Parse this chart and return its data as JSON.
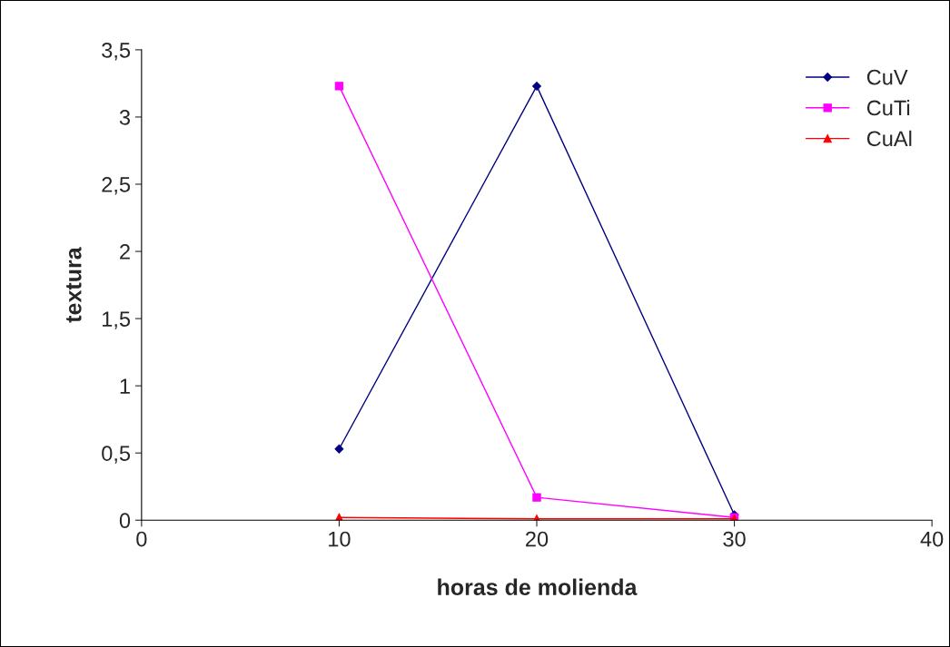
{
  "chart_data": {
    "type": "line",
    "xlabel": "horas de molienda",
    "ylabel": "textura",
    "x": [
      10,
      20,
      30
    ],
    "series": [
      {
        "name": "CuV",
        "color": "#000080",
        "marker": "diamond",
        "values": [
          0.53,
          3.23,
          0.04
        ]
      },
      {
        "name": "CuTi",
        "color": "#ff00ff",
        "marker": "square",
        "values": [
          3.23,
          0.17,
          0.02
        ]
      },
      {
        "name": "CuAl",
        "color": "#ff0000",
        "marker": "triangle",
        "values": [
          0.02,
          0.01,
          0.01
        ]
      }
    ],
    "xlim": [
      0,
      40
    ],
    "xticks": [
      0,
      10,
      20,
      30,
      40
    ],
    "ylim": [
      0,
      3.5
    ],
    "yticks": [
      0,
      {
        "value": 0.5,
        "label": "0,5"
      },
      1,
      {
        "value": 1.5,
        "label": "1,5"
      },
      2,
      {
        "value": 2.5,
        "label": "2,5"
      },
      3,
      {
        "value": 3.5,
        "label": "3,5"
      }
    ],
    "grid": false,
    "legend": "top right"
  }
}
